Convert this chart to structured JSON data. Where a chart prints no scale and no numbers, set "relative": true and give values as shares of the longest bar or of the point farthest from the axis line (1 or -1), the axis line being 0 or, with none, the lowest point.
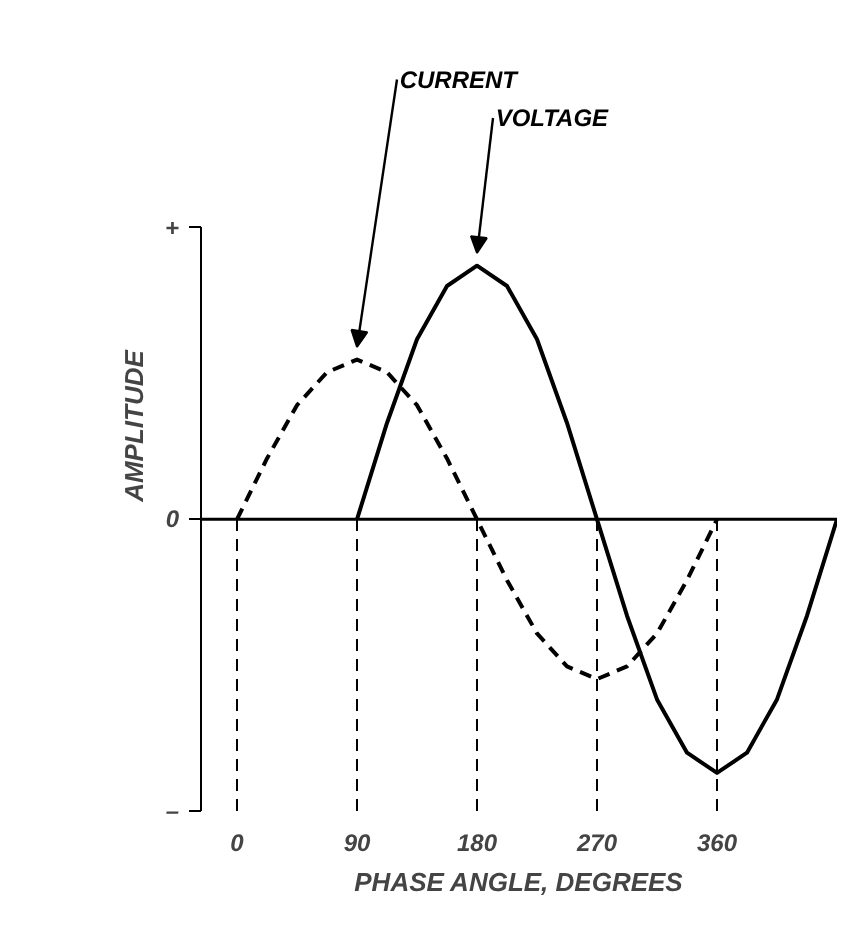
{
  "chart_data": {
    "type": "line",
    "xlabel": "PHASE ANGLE, DEGREES",
    "ylabel": "AMPLITUDE",
    "xlim": [
      -27,
      450
    ],
    "xticks": [
      0,
      90,
      180,
      270,
      360
    ],
    "relative": true,
    "annotations": [
      "+",
      "0",
      "–"
    ],
    "grid": false,
    "legend": false,
    "marker": "none",
    "series": [
      {
        "name": "CURRENT",
        "color": "#000000",
        "line_style": "dashed",
        "x": [
          0,
          22.5,
          45,
          67.5,
          90,
          112.5,
          135,
          157.5,
          180,
          202.5,
          225,
          247.5,
          270,
          292.5,
          315,
          337.5,
          360
        ],
        "values": [
          0,
          0.24,
          0.45,
          0.58,
          0.63,
          0.58,
          0.45,
          0.24,
          0,
          -0.24,
          -0.45,
          -0.58,
          -0.63,
          -0.58,
          -0.45,
          -0.24,
          0
        ]
      },
      {
        "name": "VOLTAGE",
        "color": "#000000",
        "line_style": "solid",
        "x": [
          90,
          112.5,
          135,
          157.5,
          180,
          202.5,
          225,
          247.5,
          270,
          292.5,
          315,
          337.5,
          360,
          382.5,
          405,
          427.5,
          450
        ],
        "values": [
          0,
          0.38,
          0.71,
          0.92,
          1,
          0.92,
          0.71,
          0.38,
          0,
          -0.38,
          -0.71,
          -0.92,
          -1,
          -0.92,
          -0.71,
          -0.38,
          0
        ]
      }
    ],
    "ref_lines": [
      {
        "axis": "y",
        "value": 0,
        "color": "#000000",
        "line_style": "solid"
      },
      {
        "axis": "x",
        "value": 0,
        "color": "#000000",
        "line_style": "dashed"
      },
      {
        "axis": "x",
        "value": 90,
        "color": "#000000",
        "line_style": "dashed"
      },
      {
        "axis": "x",
        "value": 180,
        "color": "#000000",
        "line_style": "dashed"
      },
      {
        "axis": "x",
        "value": 270,
        "color": "#000000",
        "line_style": "dashed"
      },
      {
        "axis": "x",
        "value": 360,
        "color": "#000000",
        "line_style": "dashed"
      }
    ]
  }
}
